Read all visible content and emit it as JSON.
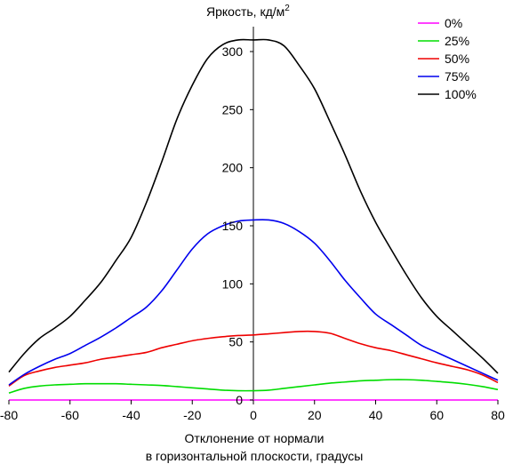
{
  "chart_data": {
    "type": "line",
    "title": "",
    "ylabel": "Яркость, кд/м",
    "ylabel_superscript": "2",
    "xlabel_line1": "Отклонение от нормали",
    "xlabel_line2": "в горизонтальной плоскости, градусы",
    "xlim": [
      -80,
      80
    ],
    "ylim": [
      0,
      320
    ],
    "x_ticks": [
      -80,
      -60,
      -40,
      -20,
      0,
      20,
      40,
      60,
      80
    ],
    "y_ticks": [
      0,
      50,
      100,
      150,
      200,
      250,
      300
    ],
    "grid": false,
    "legend_position": "top-right",
    "x": [
      -80,
      -75,
      -70,
      -65,
      -60,
      -55,
      -50,
      -45,
      -40,
      -35,
      -30,
      -25,
      -20,
      -15,
      -10,
      -5,
      0,
      5,
      10,
      15,
      20,
      25,
      30,
      35,
      40,
      45,
      50,
      55,
      60,
      65,
      70,
      75,
      80
    ],
    "series": [
      {
        "name": "0%",
        "color": "#ff00ff",
        "values": [
          0,
          0,
          0,
          0,
          0,
          0,
          0,
          0,
          0,
          0,
          0,
          0,
          0,
          0,
          0,
          0,
          0,
          0,
          0,
          0,
          0,
          0,
          0,
          0,
          0,
          0,
          0,
          0,
          0,
          0,
          0,
          0,
          0
        ]
      },
      {
        "name": "25%",
        "color": "#00dd00",
        "values": [
          6,
          10,
          12,
          13,
          13.5,
          14,
          14,
          14,
          13.5,
          13,
          12.5,
          11.5,
          10.5,
          9.5,
          8.5,
          8,
          8,
          8.5,
          10,
          11.5,
          13,
          14.5,
          15.5,
          16.5,
          17,
          17.5,
          17.5,
          17,
          16,
          15,
          13.5,
          11.5,
          9
        ]
      },
      {
        "name": "50%",
        "color": "#ee0000",
        "values": [
          12,
          21,
          25,
          28,
          30,
          32,
          35,
          37,
          39,
          41,
          45,
          48,
          51,
          53,
          54.5,
          55.5,
          56,
          57,
          58,
          59,
          59,
          57.5,
          53,
          48.5,
          45,
          42.5,
          39,
          35.5,
          32,
          29,
          26,
          21.5,
          15
        ]
      },
      {
        "name": "75%",
        "color": "#0000ee",
        "values": [
          13,
          22,
          29,
          35,
          40,
          47,
          54,
          62,
          71,
          80,
          94,
          112,
          130,
          143,
          150,
          154,
          155,
          155,
          152,
          145,
          135,
          120,
          103,
          88,
          74,
          65,
          56,
          47,
          41,
          35,
          29,
          23,
          17
        ]
      },
      {
        "name": "100%",
        "color": "#000000",
        "values": [
          24,
          40,
          53,
          62,
          72,
          86,
          101,
          120,
          140,
          170,
          205,
          242,
          271,
          294,
          306,
          310,
          310,
          310,
          305,
          288,
          268,
          240,
          211,
          180,
          153,
          130,
          108,
          88,
          72,
          60,
          48,
          36,
          23
        ]
      }
    ]
  }
}
